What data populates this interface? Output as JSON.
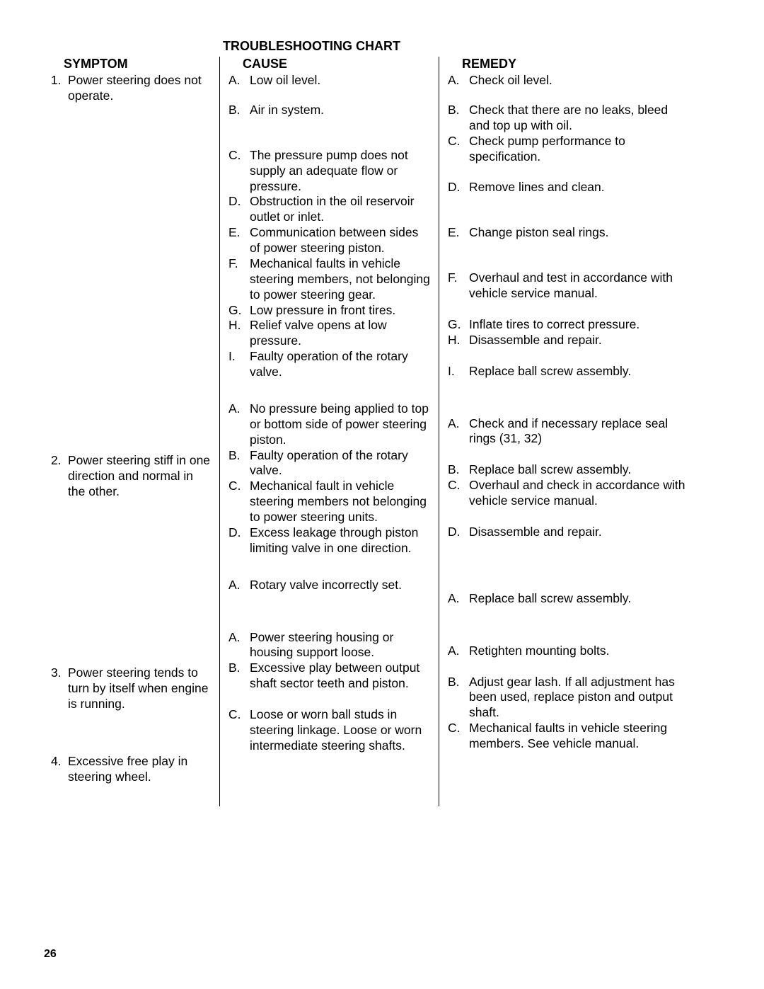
{
  "title": "TROUBLESHOOTING CHART",
  "headers": {
    "symptom": "SYMPTOM",
    "cause": "CAUSE",
    "remedy": "REMEDY"
  },
  "page_number": "26",
  "symptoms": [
    {
      "marker": "1.",
      "text": "Power steering does not operate."
    },
    {
      "marker": "2.",
      "text": "Power steering stiff in one direction and normal in the other."
    },
    {
      "marker": "3.",
      "text": "Power steering tends to turn by itself when engine is running."
    },
    {
      "marker": "4.",
      "text": "Excessive free play in steering wheel."
    }
  ],
  "causes": [
    [
      {
        "marker": "A.",
        "text": "Low oil level.",
        "gap_after": 20
      },
      {
        "marker": "B.",
        "text": "Air in system.",
        "gap_after": 42
      },
      {
        "marker": "C.",
        "text": "The pressure pump does not supply an adequate flow or pressure."
      },
      {
        "marker": "D.",
        "text": "Obstruction in the oil reservoir outlet or inlet."
      },
      {
        "marker": "E.",
        "text": "Communication between sides of power steering piston."
      },
      {
        "marker": "F.",
        "text": "Mechanical faults in vehicle steering members, not belonging to power steering gear."
      },
      {
        "marker": "G.",
        "text": "Low pressure in front tires."
      },
      {
        "marker": "H.",
        "text": "Relief valve opens at low pressure."
      },
      {
        "marker": "I.",
        "text": "Faulty operation of the rotary valve."
      }
    ],
    [
      {
        "marker": "A.",
        "text": "No pressure being applied to top or bottom side of power steering piston."
      },
      {
        "marker": "B.",
        "text": "Faulty operation of the rotary valve."
      },
      {
        "marker": "C.",
        "text": "Mechanical fault in vehicle steering members not belonging to power steering units."
      },
      {
        "marker": "D.",
        "text": "Excess leakage through piston limiting valve in one direction."
      }
    ],
    [
      {
        "marker": "A.",
        "text": "Rotary valve incorrectly set.",
        "gap_after": 22
      }
    ],
    [
      {
        "marker": "A.",
        "text": "Power steering housing or housing support loose."
      },
      {
        "marker": "B.",
        "text": "Excessive play between output shaft sector teeth and piston.",
        "gap_after": 22
      },
      {
        "marker": "C.",
        "text": "Loose or worn ball studs in steering linkage. Loose or worn intermediate steering shafts."
      }
    ]
  ],
  "remedies": [
    [
      {
        "marker": "A.",
        "text": "Check oil level.",
        "gap_after": 20
      },
      {
        "marker": "B.",
        "text": "Check that there are no leaks, bleed and top up with oil."
      },
      {
        "marker": "C.",
        "text": "Check pump performance to specification.",
        "gap_after": 22
      },
      {
        "marker": "D.",
        "text": "Remove lines and clean.",
        "gap_after": 42
      },
      {
        "marker": "E.",
        "text": "Change piston seal rings.",
        "gap_after": 42
      },
      {
        "marker": "F.",
        "text": "Overhaul and test in accordance with vehicle service manual.",
        "gap_after": 22
      },
      {
        "marker": "G.",
        "text": "Inflate tires to correct pressure."
      },
      {
        "marker": "H.",
        "text": "Disassemble and repair.",
        "gap_after": 22
      },
      {
        "marker": "I.",
        "text": "Replace ball screw assembly.",
        "gap_after": 22
      }
    ],
    [
      {
        "marker": "A.",
        "text": "Check and if necessary replace seal rings (31, 32)",
        "gap_after": 22
      },
      {
        "marker": "B.",
        "text": "Replace ball screw assembly."
      },
      {
        "marker": "C.",
        "text": "Overhaul and check in accordance with vehicle service manual.",
        "gap_after": 22
      },
      {
        "marker": "D.",
        "text": "Disassemble and repair.",
        "gap_after": 42
      }
    ],
    [
      {
        "marker": "A.",
        "text": "Replace ball screw assembly.",
        "gap_after": 22
      }
    ],
    [
      {
        "marker": "A.",
        "text": "Retighten mounting bolts.",
        "gap_after": 22
      },
      {
        "marker": "B.",
        "text": "Adjust gear lash. If all adjustment has been used, replace piston and output shaft."
      },
      {
        "marker": "C.",
        "text": "Mechanical faults in vehicle steering members. See vehicle manual.",
        "gap_after": 22
      }
    ]
  ],
  "layout": {
    "symptom_group_heights": [
      507,
      270,
      95,
      0
    ]
  }
}
